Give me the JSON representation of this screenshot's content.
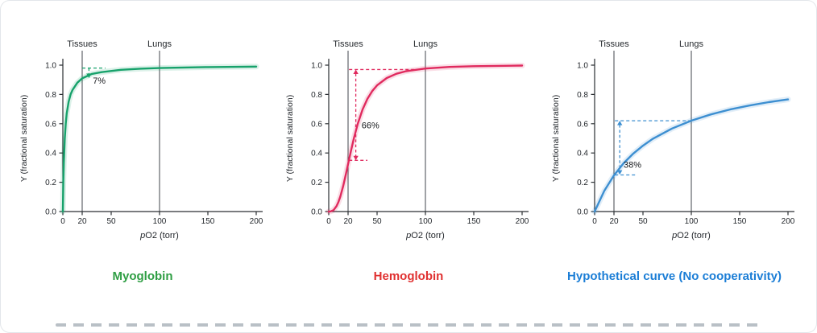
{
  "page": {
    "background": "#ffffff",
    "border_color": "#e3e6ea",
    "torn_edge_color": "#b9c0c6"
  },
  "chart_data": [
    {
      "type": "line",
      "caption": "Myoglobin",
      "caption_color": "#2f9e44",
      "curve_color": "#17a26b",
      "xlabel_italic": "p",
      "xlabel_rest": "O2 (torr)",
      "ylabel": "Y (fractional saturation)",
      "xlim": [
        0,
        200
      ],
      "ylim": [
        0,
        1
      ],
      "x_ticks": [
        0,
        20,
        50,
        100,
        150,
        200
      ],
      "y_ticks": [
        0,
        0.2,
        0.4,
        0.6,
        0.8,
        1
      ],
      "vlines": [
        {
          "x": 20,
          "label": "Tissues"
        },
        {
          "x": 100,
          "label": "Lungs"
        }
      ],
      "x": [
        0,
        0.5,
        1,
        2,
        3,
        4,
        6,
        8,
        10,
        15,
        20,
        30,
        40,
        60,
        80,
        100,
        150,
        200
      ],
      "y": [
        0,
        0.2,
        0.33,
        0.5,
        0.6,
        0.67,
        0.75,
        0.8,
        0.83,
        0.88,
        0.91,
        0.94,
        0.952,
        0.968,
        0.976,
        0.98,
        0.987,
        0.99
      ],
      "annotation": {
        "text": "7%",
        "label_x": 31,
        "label_y": 0.875,
        "arrow": {
          "x": 27,
          "y1": 0.98,
          "y2": 0.912,
          "heads": "end"
        },
        "hlines": [
          {
            "y": 0.98,
            "x1": 20,
            "x2": 44
          }
        ]
      }
    },
    {
      "type": "line",
      "caption": "Hemoglobin",
      "caption_color": "#e03131",
      "curve_color": "#e02a5e",
      "xlabel_italic": "p",
      "xlabel_rest": "O2 (torr)",
      "ylabel": "Y (fractional saturation)",
      "xlim": [
        0,
        200
      ],
      "ylim": [
        0,
        1
      ],
      "x_ticks": [
        0,
        20,
        50,
        100,
        150,
        200
      ],
      "y_ticks": [
        0,
        0.2,
        0.4,
        0.6,
        0.8,
        1
      ],
      "vlines": [
        {
          "x": 20,
          "label": "Tissues"
        },
        {
          "x": 100,
          "label": "Lungs"
        }
      ],
      "x": [
        0,
        2,
        5,
        8,
        10,
        12,
        15,
        18,
        20,
        23,
        26,
        30,
        35,
        40,
        45,
        50,
        60,
        70,
        80,
        100,
        125,
        150,
        200
      ],
      "y": [
        0,
        0.001,
        0.01,
        0.036,
        0.065,
        0.103,
        0.176,
        0.263,
        0.324,
        0.415,
        0.5,
        0.599,
        0.697,
        0.77,
        0.823,
        0.862,
        0.912,
        0.941,
        0.959,
        0.977,
        0.988,
        0.993,
        0.997
      ],
      "annotation": {
        "text": "66%",
        "label_x": 34,
        "label_y": 0.57,
        "arrow": {
          "x": 28,
          "y1": 0.97,
          "y2": 0.35,
          "heads": "both"
        },
        "hlines": [
          {
            "y": 0.97,
            "x1": 21,
            "x2": 97
          },
          {
            "y": 0.35,
            "x1": 21,
            "x2": 40
          }
        ]
      }
    },
    {
      "type": "line",
      "caption": "Hypothetical curve (No cooperativity)",
      "caption_color": "#1c7ed6",
      "curve_color": "#3d8fd1",
      "xlabel_italic": "p",
      "xlabel_rest": "O2 (torr)",
      "ylabel": "Y (fractional saturation)",
      "xlim": [
        0,
        200
      ],
      "ylim": [
        0,
        1
      ],
      "x_ticks": [
        0,
        20,
        50,
        100,
        150,
        200
      ],
      "y_ticks": [
        0,
        0.2,
        0.4,
        0.6,
        0.8,
        1
      ],
      "vlines": [
        {
          "x": 20,
          "label": "Tissues"
        },
        {
          "x": 100,
          "label": "Lungs"
        }
      ],
      "x": [
        0,
        10,
        20,
        30,
        40,
        50,
        60,
        80,
        100,
        120,
        140,
        160,
        180,
        200
      ],
      "y": [
        0,
        0.141,
        0.247,
        0.33,
        0.396,
        0.45,
        0.496,
        0.567,
        0.621,
        0.663,
        0.697,
        0.724,
        0.747,
        0.766
      ],
      "annotation": {
        "text": "38%",
        "label_x": 30,
        "label_y": 0.3,
        "arrow": {
          "x": 26,
          "y1": 0.62,
          "y2": 0.252,
          "heads": "both"
        },
        "hlines": [
          {
            "y": 0.62,
            "x1": 21,
            "x2": 100
          },
          {
            "y": 0.25,
            "x1": 21,
            "x2": 42
          }
        ]
      }
    }
  ]
}
